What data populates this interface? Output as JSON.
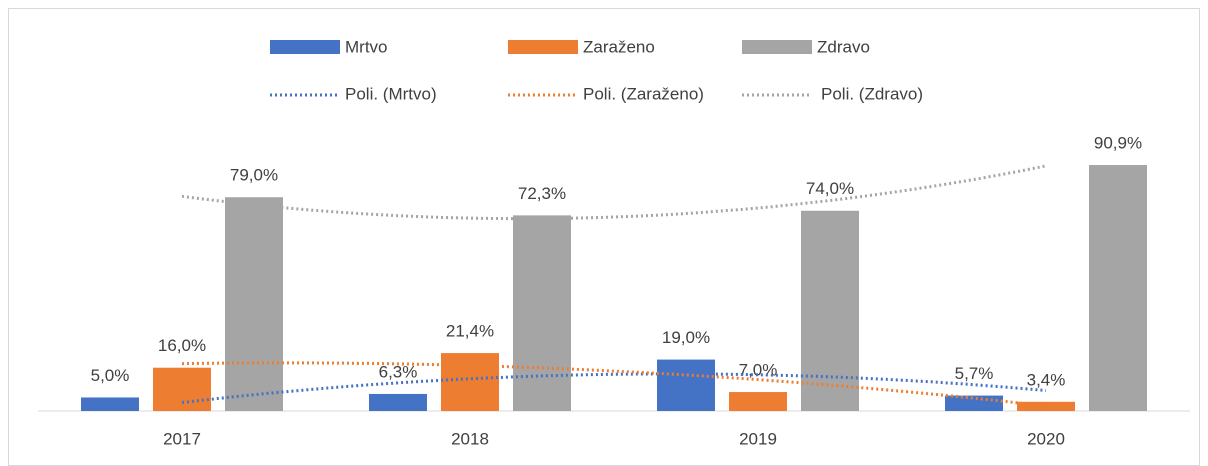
{
  "chart_data": {
    "type": "bar",
    "categories": [
      "2017",
      "2018",
      "2019",
      "2020"
    ],
    "series": [
      {
        "name": "Mrtvo",
        "color": "#4472c4",
        "values": [
          5.0,
          6.3,
          19.0,
          5.7
        ],
        "value_labels": [
          "5,0%",
          "6,3%",
          "19,0%",
          "5,7%"
        ]
      },
      {
        "name": "Zaraženo",
        "color": "#ed7d31",
        "values": [
          16.0,
          21.4,
          7.0,
          3.4
        ],
        "value_labels": [
          "16,0%",
          "21,4%",
          "7,0%",
          "3,4%"
        ]
      },
      {
        "name": "Zdravo",
        "color": "#a5a5a5",
        "values": [
          79.0,
          72.3,
          74.0,
          90.9
        ],
        "value_labels": [
          "79,0%",
          "72,3%",
          "74,0%",
          "90,9%"
        ]
      }
    ],
    "trendlines": [
      {
        "name": "Poli. (Mrtvo)",
        "series": 0,
        "order": 2
      },
      {
        "name": "Poli. (Zaraženo)",
        "series": 1,
        "order": 2
      },
      {
        "name": "Poli. (Zdravo)",
        "series": 2,
        "order": 2
      }
    ],
    "ylim": [
      0,
      100
    ],
    "legend": "top"
  }
}
